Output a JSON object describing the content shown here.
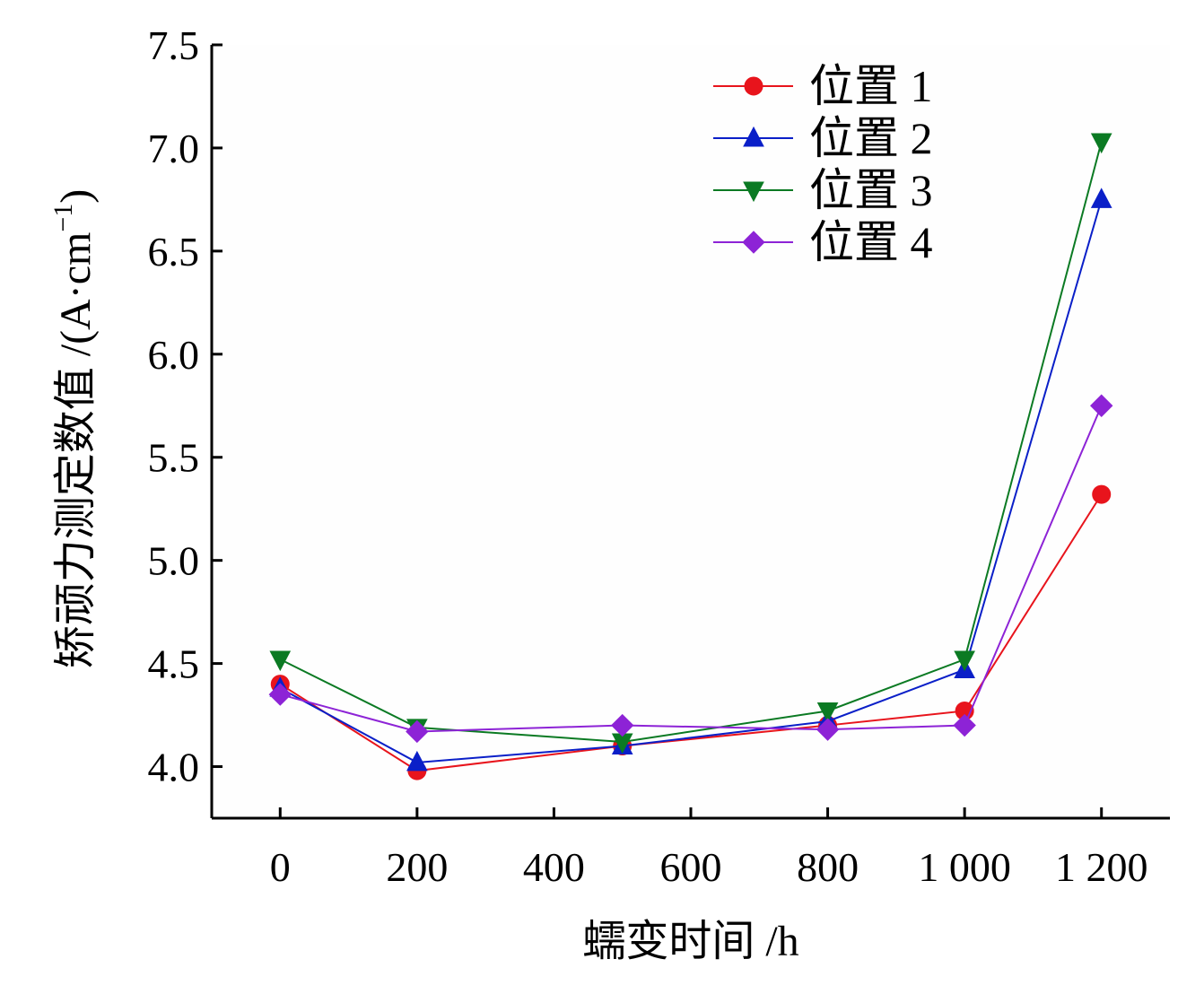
{
  "chart_data": {
    "type": "line",
    "title": "",
    "xlabel": "蠕变时间 /h",
    "ylabel_main": "矫顽力测定数值 /(A·cm",
    "ylabel_sup": "−1",
    "ylabel_close": ")",
    "x": [
      0,
      200,
      500,
      800,
      1000,
      1200
    ],
    "xlim": [
      -100,
      1300
    ],
    "xticks": [
      0,
      200,
      400,
      600,
      800,
      1000,
      1200
    ],
    "xtick_labels": [
      "0",
      "200",
      "400",
      "600",
      "800",
      "1 000",
      "1 200"
    ],
    "ylim": [
      3.75,
      7.5
    ],
    "yticks": [
      4.0,
      4.5,
      5.0,
      5.5,
      6.0,
      6.5,
      7.0,
      7.5
    ],
    "ytick_labels": [
      "4.0",
      "4.5",
      "5.0",
      "5.5",
      "6.0",
      "6.5",
      "7.0",
      "7.5"
    ],
    "grid": false,
    "legend_position": "top-right",
    "series": [
      {
        "name": "位置 1",
        "marker": "circle",
        "color": "#e8141c",
        "values": [
          4.4,
          3.98,
          4.1,
          4.2,
          4.27,
          5.32
        ]
      },
      {
        "name": "位置 2",
        "marker": "triangle-up",
        "color": "#0a1fc8",
        "values": [
          4.38,
          4.02,
          4.1,
          4.22,
          4.47,
          6.75
        ]
      },
      {
        "name": "位置 3",
        "marker": "triangle-down",
        "color": "#0b7a23",
        "values": [
          4.52,
          4.19,
          4.12,
          4.27,
          4.52,
          7.03
        ]
      },
      {
        "name": "位置 4",
        "marker": "diamond",
        "color": "#8d23d6",
        "values": [
          4.35,
          4.17,
          4.2,
          4.18,
          4.2,
          5.75
        ]
      }
    ]
  }
}
